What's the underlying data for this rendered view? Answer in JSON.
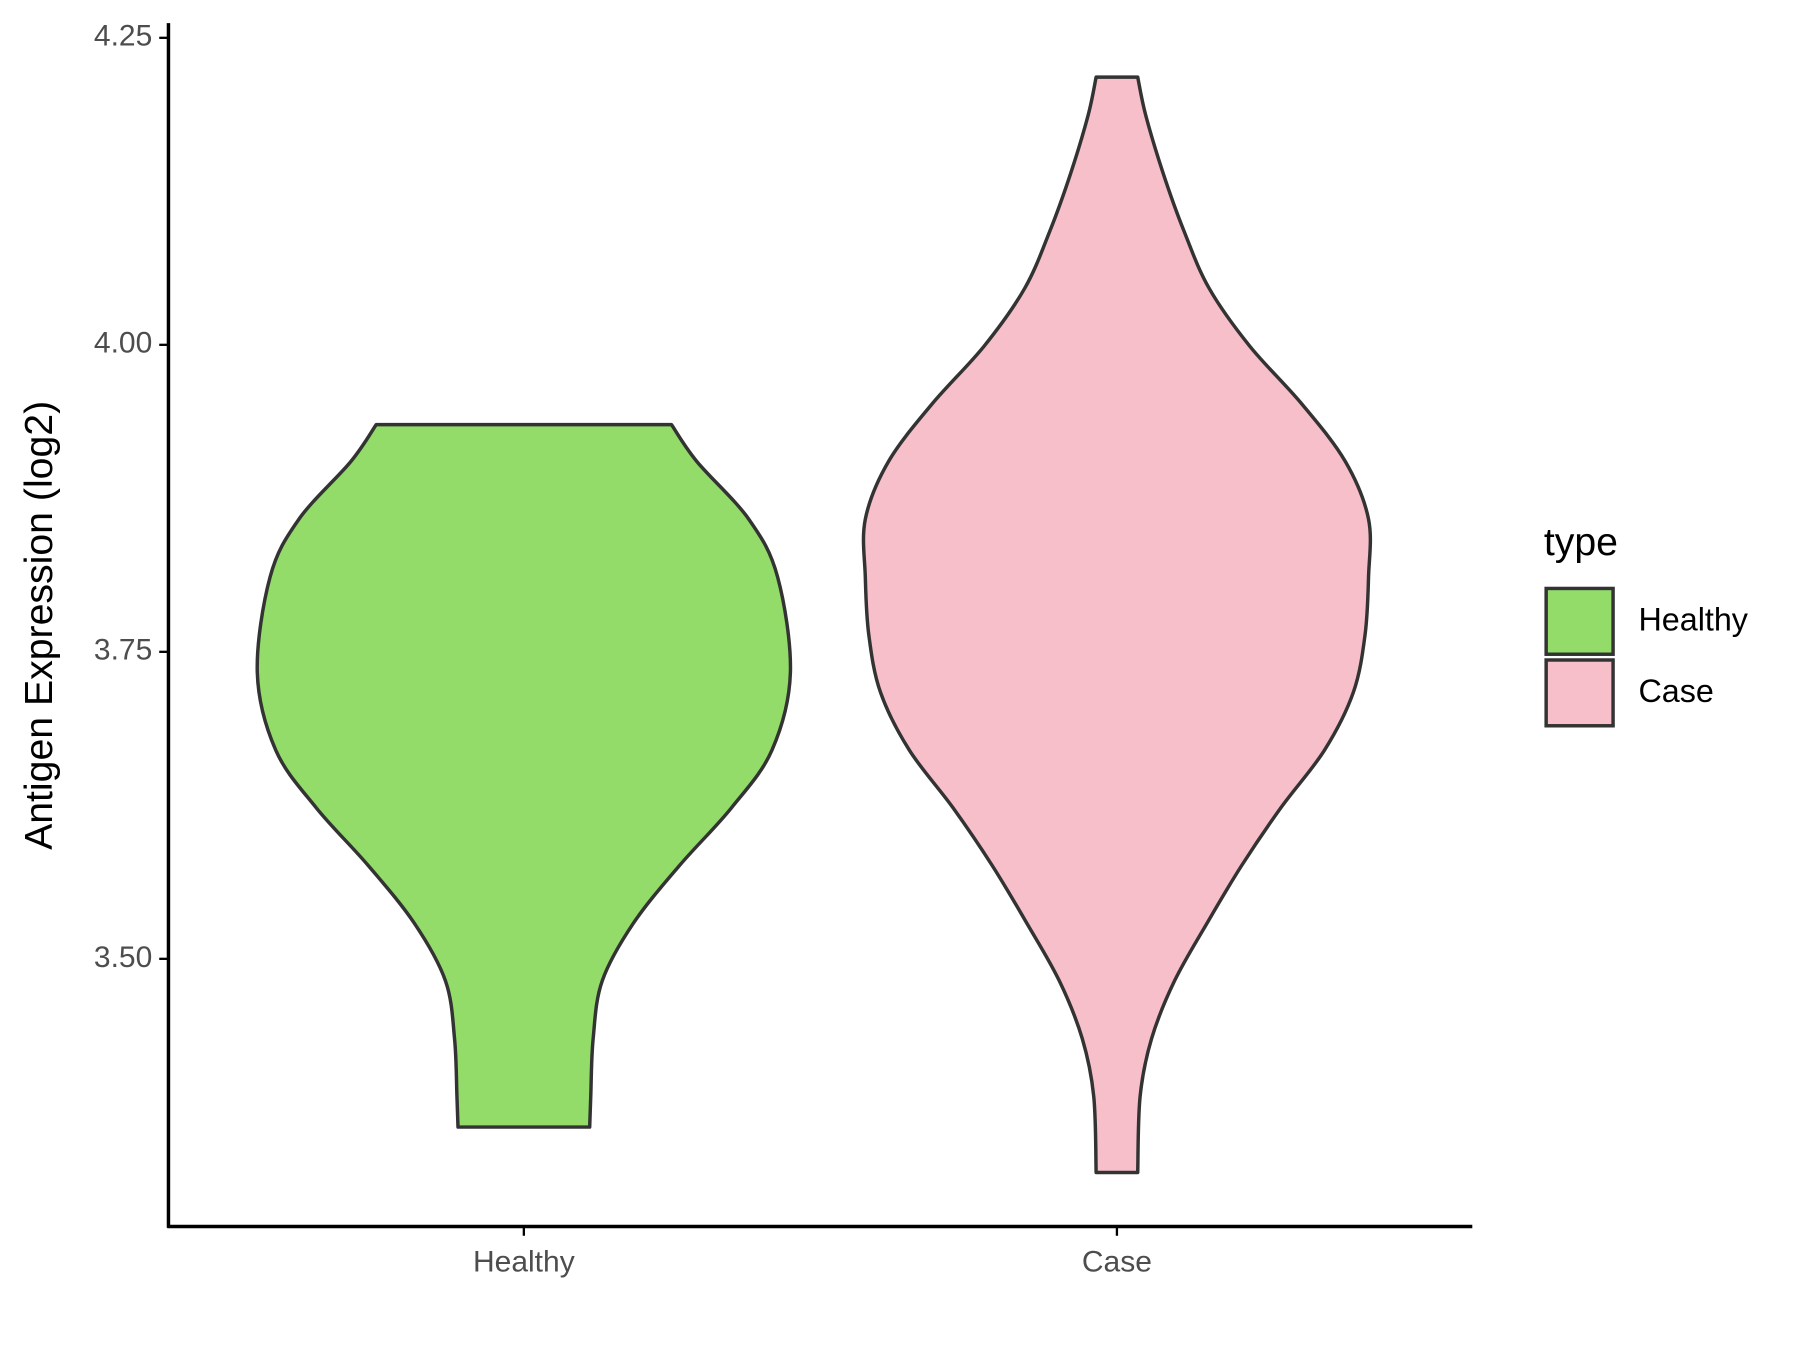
{
  "chart_data": {
    "type": "violin",
    "y_label": "Antigen Expression (log2)",
    "legend_title": "type",
    "legend_position": "right",
    "categories": [
      "Healthy",
      "Case"
    ],
    "ylim": [
      3.282,
      4.262
    ],
    "yticks": [
      {
        "value": 3.5,
        "label": "3.50"
      },
      {
        "value": 3.75,
        "label": "3.75"
      },
      {
        "value": 4.0,
        "label": "4.00"
      },
      {
        "value": 4.25,
        "label": "4.25"
      }
    ],
    "grid": false,
    "series": [
      {
        "name": "Healthy",
        "color": "#93dc6a",
        "y": [
          3.935,
          3.905,
          3.858,
          3.811,
          3.733,
          3.67,
          3.623,
          3.576,
          3.529,
          3.482,
          3.435,
          3.388,
          3.363
        ],
        "density": [
          0.554,
          0.649,
          0.844,
          0.952,
          1.0,
          0.931,
          0.779,
          0.584,
          0.411,
          0.294,
          0.26,
          0.251,
          0.247
        ]
      },
      {
        "name": "Case",
        "color": "#f7bfca",
        "y": [
          4.218,
          4.187,
          4.14,
          4.093,
          4.046,
          3.999,
          3.952,
          3.905,
          3.858,
          3.811,
          3.764,
          3.717,
          3.67,
          3.623,
          3.576,
          3.529,
          3.482,
          3.435,
          3.388,
          3.326
        ],
        "density": [
          0.078,
          0.108,
          0.173,
          0.251,
          0.346,
          0.498,
          0.693,
          0.857,
          0.944,
          0.944,
          0.931,
          0.887,
          0.779,
          0.615,
          0.468,
          0.338,
          0.216,
          0.13,
          0.087,
          0.078
        ]
      }
    ]
  }
}
